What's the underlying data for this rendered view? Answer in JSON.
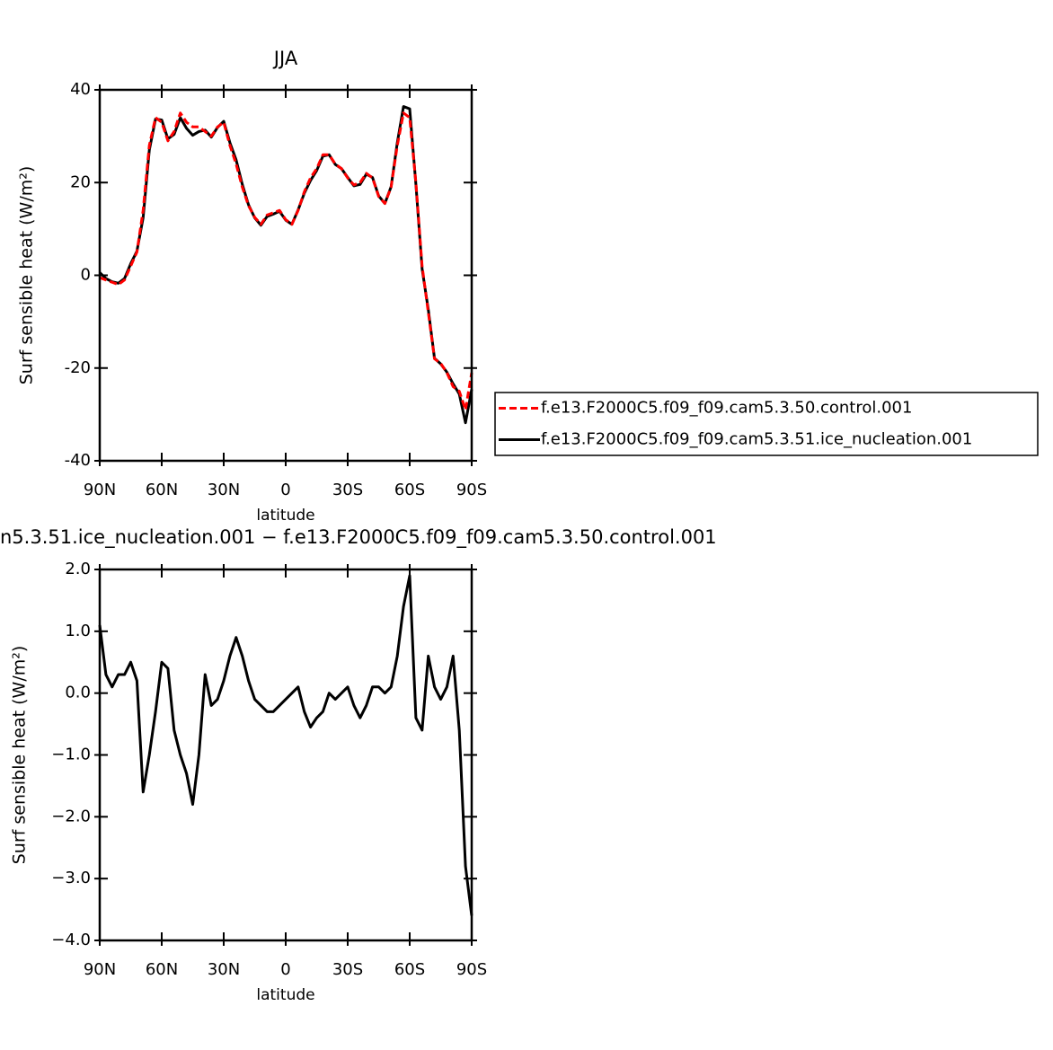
{
  "chart_data": [
    {
      "type": "line",
      "title": "JJA",
      "x_label": "latitude",
      "y_label": "Surf sensible heat (W/m²)",
      "x": [
        90,
        87,
        84,
        81,
        78,
        75,
        72,
        69,
        66,
        63,
        60,
        57,
        54,
        51,
        48,
        45,
        42,
        39,
        36,
        33,
        30,
        27,
        24,
        21,
        18,
        15,
        12,
        9,
        6,
        3,
        0,
        -3,
        -6,
        -9,
        -12,
        -15,
        -18,
        -21,
        -24,
        -27,
        -30,
        -33,
        -36,
        -39,
        -42,
        -45,
        -48,
        -51,
        -54,
        -57,
        -60,
        -63,
        -66,
        -69,
        -72,
        -75,
        -78,
        -81,
        -84,
        -87,
        -90
      ],
      "xlim": [
        90,
        -90
      ],
      "xticks": [
        {
          "value": 90,
          "label": "90N"
        },
        {
          "value": 60,
          "label": "60N"
        },
        {
          "value": 30,
          "label": "30N"
        },
        0,
        {
          "value": -30,
          "label": "30S"
        },
        {
          "value": -60,
          "label": "60S"
        },
        {
          "value": -90,
          "label": "90S"
        }
      ],
      "ylim": [
        -40,
        40
      ],
      "yticks": [
        -40,
        -20,
        0,
        20,
        40
      ],
      "legend": "right",
      "series": [
        {
          "name": "f.e13.F2000C5.f09_f09.cam5.3.50.control.001",
          "color": "#ff0000",
          "line_style": "dashed",
          "values": [
            -0.5,
            -1,
            -1.5,
            -2,
            -1,
            2,
            5,
            14,
            28,
            34,
            33,
            29,
            31,
            35,
            33,
            32,
            32,
            31,
            30,
            32,
            33,
            28,
            24,
            19,
            15,
            12.5,
            11,
            13,
            13.5,
            14,
            12,
            11,
            14,
            18,
            21,
            23,
            26,
            26,
            24,
            23,
            21,
            19.5,
            20,
            22,
            21,
            17,
            15.5,
            19,
            28,
            35,
            34,
            20,
            2,
            -8,
            -18,
            -19,
            -21,
            -24,
            -25,
            -29,
            -21
          ]
        },
        {
          "name": "f.e13.F2000C5.f09_f09.cam5.3.51.ice_nucleation.001",
          "color": "#000000",
          "line_style": "solid",
          "values": [
            0.6,
            -0.7,
            -1.4,
            -1.7,
            -0.7,
            2.5,
            5.2,
            12.4,
            27,
            33.7,
            33.5,
            29.4,
            30.4,
            34,
            31.7,
            30.2,
            31,
            31.3,
            29.8,
            31.9,
            33.2,
            28.6,
            24.9,
            19.6,
            15.2,
            12.4,
            10.8,
            12.7,
            13.2,
            13.8,
            11.9,
            11,
            14.1,
            17.7,
            20.45,
            22.6,
            25.7,
            26,
            23.9,
            23,
            21.1,
            19.3,
            19.6,
            21.8,
            21.1,
            17.1,
            15.5,
            19.1,
            28.6,
            36.4,
            35.9,
            19.6,
            1.4,
            -7.4,
            -17.9,
            -19.1,
            -20.9,
            -23.4,
            -25.6,
            -31.8,
            -24.6
          ]
        }
      ]
    },
    {
      "type": "line",
      "title": "n5.3.51.ice_nucleation.001 − f.e13.F2000C5.f09_f09.cam5.3.50.control.001",
      "x_label": "latitude",
      "y_label": "Surf sensible heat (W/m²)",
      "x": [
        90,
        87,
        84,
        81,
        78,
        75,
        72,
        69,
        66,
        63,
        60,
        57,
        54,
        51,
        48,
        45,
        42,
        39,
        36,
        33,
        30,
        27,
        24,
        21,
        18,
        15,
        12,
        9,
        6,
        3,
        0,
        -3,
        -6,
        -9,
        -12,
        -15,
        -18,
        -21,
        -24,
        -27,
        -30,
        -33,
        -36,
        -39,
        -42,
        -45,
        -48,
        -51,
        -54,
        -57,
        -60,
        -63,
        -66,
        -69,
        -72,
        -75,
        -78,
        -81,
        -84,
        -87,
        -90
      ],
      "xlim": [
        90,
        -90
      ],
      "xticks": [
        {
          "value": 90,
          "label": "90N"
        },
        {
          "value": 60,
          "label": "60N"
        },
        {
          "value": 30,
          "label": "30N"
        },
        0,
        {
          "value": -30,
          "label": "30S"
        },
        {
          "value": -60,
          "label": "60S"
        },
        {
          "value": -90,
          "label": "90S"
        }
      ],
      "ylim": [
        -4,
        2
      ],
      "yticks": [
        {
          "value": -4,
          "label": "−4.0"
        },
        {
          "value": -3,
          "label": "−3.0"
        },
        {
          "value": -2,
          "label": "−2.0"
        },
        {
          "value": -1,
          "label": "−1.0"
        },
        {
          "value": 0,
          "label": "0.0"
        },
        {
          "value": 1,
          "label": "1.0"
        },
        {
          "value": 2,
          "label": "2.0"
        }
      ],
      "color": "#000000",
      "values": [
        1.1,
        0.3,
        0.1,
        0.3,
        0.3,
        0.5,
        0.2,
        -1.6,
        -1.0,
        -0.3,
        0.5,
        0.4,
        -0.6,
        -1.0,
        -1.3,
        -1.8,
        -1.0,
        0.3,
        -0.2,
        -0.1,
        0.2,
        0.6,
        0.9,
        0.6,
        0.2,
        -0.1,
        -0.2,
        -0.3,
        -0.3,
        -0.2,
        -0.1,
        0.0,
        0.1,
        -0.3,
        -0.55,
        -0.4,
        -0.3,
        0.0,
        -0.1,
        0.0,
        0.1,
        -0.2,
        -0.4,
        -0.2,
        0.1,
        0.1,
        0.0,
        0.1,
        0.6,
        1.4,
        1.9,
        -0.4,
        -0.6,
        0.6,
        0.1,
        -0.1,
        0.1,
        0.6,
        -0.6,
        -2.8,
        -3.6
      ]
    }
  ]
}
